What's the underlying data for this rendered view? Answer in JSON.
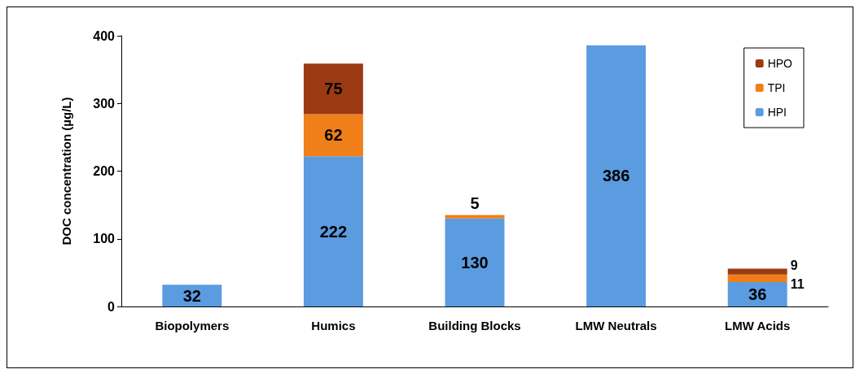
{
  "chart_data": {
    "type": "bar",
    "stacked": true,
    "ylabel": "DOC concentration (µg/L)",
    "categories": [
      "Biopolymers",
      "Humics",
      "Building Blocks",
      "LMW Neutrals",
      "LMW Acids"
    ],
    "series": [
      {
        "name": "HPI",
        "color": "#5b9be0",
        "values": [
          32,
          222,
          130,
          386,
          36
        ],
        "value_labels": [
          "32",
          "222",
          "130",
          "386",
          "36"
        ]
      },
      {
        "name": "TPI",
        "color": "#f07f1a",
        "values": [
          null,
          62,
          5,
          null,
          11
        ],
        "value_labels": [
          null,
          "62",
          "5",
          null,
          "11"
        ]
      },
      {
        "name": "HPO",
        "color": "#9c3a14",
        "values": [
          null,
          75,
          null,
          null,
          9
        ],
        "value_labels": [
          null,
          "75",
          null,
          null,
          "9"
        ]
      }
    ],
    "ylim": [
      0,
      400
    ],
    "yticks": [
      0,
      100,
      200,
      300,
      400
    ],
    "legend": "top right"
  }
}
